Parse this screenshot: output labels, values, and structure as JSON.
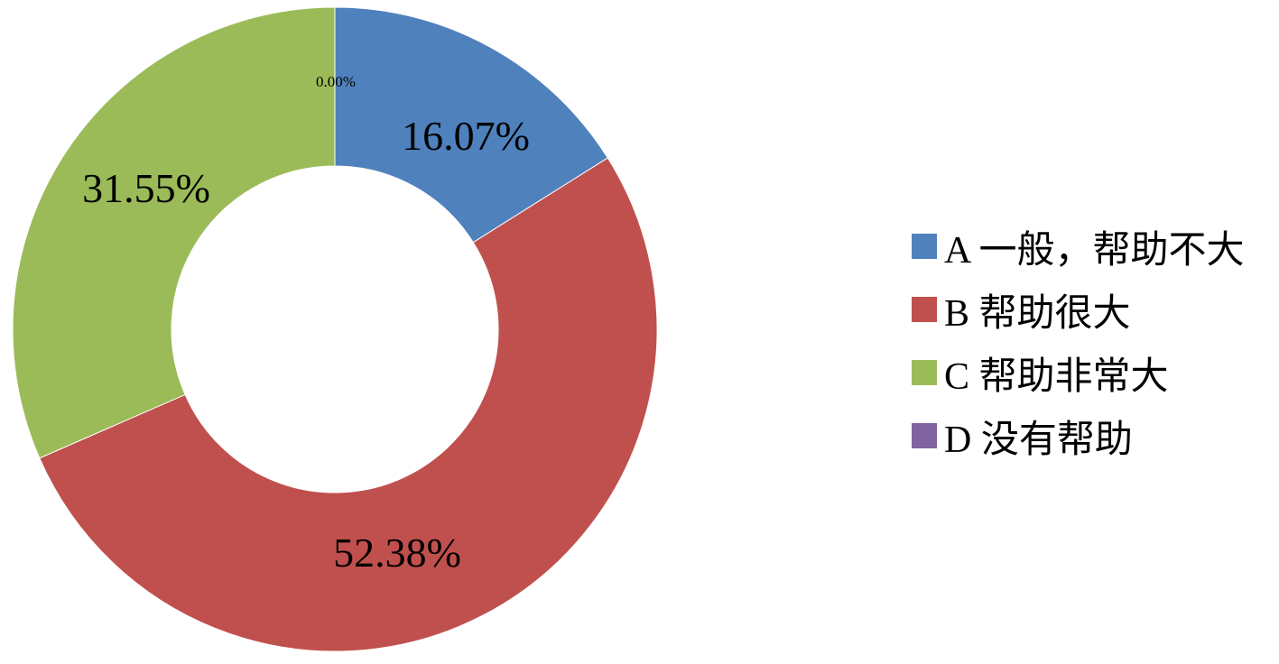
{
  "chart_data": {
    "type": "pie",
    "donut": true,
    "categories": [
      "A 一般，帮助不大",
      "B 帮助很大",
      "C 帮助非常大",
      "D 没有帮助"
    ],
    "values": [
      16.07,
      52.38,
      31.55,
      0.0
    ],
    "data_labels": [
      "16.07%",
      "52.38%",
      "31.55%",
      "0.00%"
    ],
    "colors": [
      "#4F81BD",
      "#C0504D",
      "#9BBB59",
      "#8064A2"
    ],
    "legend_position": "right"
  }
}
